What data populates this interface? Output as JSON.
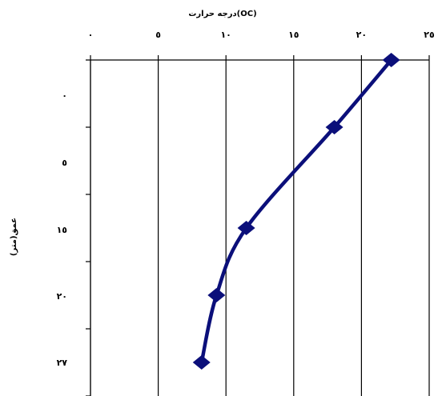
{
  "chart_data": {
    "type": "line",
    "title": "",
    "xlabel": "درجه حرارت(OC)",
    "ylabel": "عمق(متر)",
    "x_axis_position": "top",
    "y_axis_inverted": true,
    "xlim": [
      0,
      25
    ],
    "ylim": [
      0,
      25
    ],
    "x_ticks": [
      0,
      5,
      10,
      15,
      20,
      25
    ],
    "x_tick_labels": [
      "٠",
      "٥",
      "١٠",
      "١٥",
      "٢٠",
      "٢٥"
    ],
    "y_ticks": [
      0,
      5,
      15,
      20,
      27
    ],
    "y_tick_labels": [
      "٠",
      "٥",
      "١٥",
      "٢٠",
      "٢٧"
    ],
    "grid": true,
    "series": [
      {
        "color": "#0b0f7a",
        "marker": "diamond",
        "x": [
          22.2,
          18,
          11.5,
          9.3,
          8.2
        ],
        "y": [
          0,
          5,
          12.5,
          17.5,
          22.5
        ]
      }
    ]
  }
}
